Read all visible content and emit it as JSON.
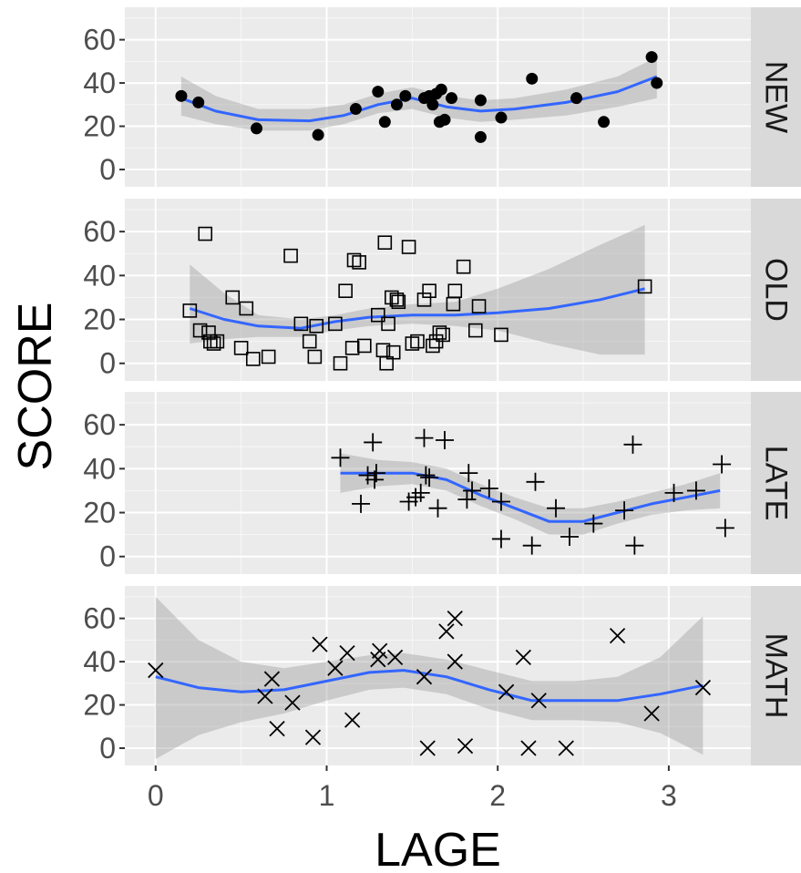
{
  "chart_data": {
    "type": "scatter",
    "xlabel": "LAGE",
    "ylabel": "SCORE",
    "xlim": [
      -0.18,
      3.48
    ],
    "ylim": [
      -8,
      75
    ],
    "x_ticks": [
      0,
      1,
      2,
      3
    ],
    "y_ticks": [
      0,
      20,
      40,
      60
    ],
    "grid": true,
    "smooth": "loess with 95% confidence band",
    "colors": {
      "panel_bg": "#ebebeb",
      "grid_major": "#ffffff",
      "strip_bg": "#d9d9d9",
      "smooth_line": "#3366ff",
      "ribbon": "#999999",
      "points": "#000000"
    },
    "panels": [
      {
        "label": "NEW",
        "marker": "filled-circle",
        "points": [
          [
            0.15,
            34
          ],
          [
            0.25,
            31
          ],
          [
            0.59,
            19
          ],
          [
            0.95,
            16
          ],
          [
            1.17,
            28
          ],
          [
            1.3,
            36
          ],
          [
            1.34,
            22
          ],
          [
            1.41,
            30
          ],
          [
            1.46,
            34
          ],
          [
            1.57,
            33
          ],
          [
            1.6,
            34
          ],
          [
            1.62,
            30
          ],
          [
            1.64,
            35
          ],
          [
            1.66,
            22
          ],
          [
            1.67,
            37
          ],
          [
            1.69,
            23
          ],
          [
            1.73,
            33
          ],
          [
            1.9,
            15
          ],
          [
            1.9,
            32
          ],
          [
            2.02,
            24
          ],
          [
            2.2,
            42
          ],
          [
            2.46,
            33
          ],
          [
            2.62,
            22
          ],
          [
            2.9,
            52
          ],
          [
            2.93,
            40
          ]
        ],
        "smooth": [
          [
            0.15,
            33
          ],
          [
            0.35,
            27
          ],
          [
            0.6,
            23
          ],
          [
            0.9,
            22.5
          ],
          [
            1.1,
            25
          ],
          [
            1.3,
            30
          ],
          [
            1.5,
            33
          ],
          [
            1.7,
            29
          ],
          [
            1.9,
            27
          ],
          [
            2.1,
            28
          ],
          [
            2.4,
            31
          ],
          [
            2.7,
            36
          ],
          [
            2.93,
            43
          ]
        ],
        "band": [
          [
            0.15,
            25,
            43
          ],
          [
            0.35,
            21,
            34
          ],
          [
            0.6,
            18,
            28
          ],
          [
            0.9,
            18,
            28
          ],
          [
            1.1,
            21,
            30
          ],
          [
            1.3,
            26,
            35
          ],
          [
            1.5,
            28,
            38
          ],
          [
            1.7,
            24,
            34
          ],
          [
            1.9,
            22,
            32
          ],
          [
            2.1,
            23,
            33
          ],
          [
            2.4,
            25,
            37
          ],
          [
            2.7,
            29,
            43
          ],
          [
            2.93,
            33,
            52
          ]
        ]
      },
      {
        "label": "OLD",
        "marker": "open-square",
        "points": [
          [
            0.2,
            24
          ],
          [
            0.26,
            15
          ],
          [
            0.29,
            59
          ],
          [
            0.31,
            14
          ],
          [
            0.32,
            10
          ],
          [
            0.34,
            9
          ],
          [
            0.36,
            10
          ],
          [
            0.45,
            30
          ],
          [
            0.5,
            7
          ],
          [
            0.53,
            25
          ],
          [
            0.57,
            2
          ],
          [
            0.66,
            3
          ],
          [
            0.79,
            49
          ],
          [
            0.85,
            18
          ],
          [
            0.9,
            10
          ],
          [
            0.93,
            3
          ],
          [
            0.94,
            17
          ],
          [
            1.05,
            18
          ],
          [
            1.08,
            0
          ],
          [
            1.11,
            33
          ],
          [
            1.15,
            7
          ],
          [
            1.16,
            47
          ],
          [
            1.19,
            46
          ],
          [
            1.22,
            8
          ],
          [
            1.3,
            22
          ],
          [
            1.33,
            6
          ],
          [
            1.34,
            55
          ],
          [
            1.35,
            0
          ],
          [
            1.36,
            18
          ],
          [
            1.38,
            30
          ],
          [
            1.39,
            5
          ],
          [
            1.41,
            29
          ],
          [
            1.42,
            28
          ],
          [
            1.48,
            53
          ],
          [
            1.5,
            9
          ],
          [
            1.53,
            10
          ],
          [
            1.57,
            29
          ],
          [
            1.6,
            33
          ],
          [
            1.62,
            8
          ],
          [
            1.64,
            10
          ],
          [
            1.66,
            14
          ],
          [
            1.68,
            13
          ],
          [
            1.74,
            27
          ],
          [
            1.75,
            33
          ],
          [
            1.8,
            44
          ],
          [
            1.87,
            15
          ],
          [
            1.89,
            26
          ],
          [
            2.02,
            13
          ],
          [
            2.86,
            35
          ]
        ],
        "smooth": [
          [
            0.2,
            25
          ],
          [
            0.4,
            20
          ],
          [
            0.6,
            17
          ],
          [
            0.85,
            16
          ],
          [
            1.05,
            19
          ],
          [
            1.25,
            21
          ],
          [
            1.5,
            22
          ],
          [
            1.75,
            22
          ],
          [
            2.0,
            23
          ],
          [
            2.3,
            25
          ],
          [
            2.6,
            29
          ],
          [
            2.86,
            34
          ]
        ],
        "band": [
          [
            0.2,
            9,
            45
          ],
          [
            0.4,
            11,
            32
          ],
          [
            0.6,
            12,
            22
          ],
          [
            0.85,
            12,
            20
          ],
          [
            1.05,
            15,
            22
          ],
          [
            1.25,
            17,
            25
          ],
          [
            1.5,
            18,
            27
          ],
          [
            1.75,
            17,
            28
          ],
          [
            2.0,
            15,
            34
          ],
          [
            2.3,
            9,
            43
          ],
          [
            2.6,
            4,
            54
          ],
          [
            2.86,
            4,
            63
          ]
        ]
      },
      {
        "label": "LATE",
        "marker": "plus",
        "points": [
          [
            1.08,
            45
          ],
          [
            1.2,
            24
          ],
          [
            1.24,
            37
          ],
          [
            1.27,
            52
          ],
          [
            1.28,
            35
          ],
          [
            1.29,
            38
          ],
          [
            1.48,
            25
          ],
          [
            1.52,
            27
          ],
          [
            1.55,
            29
          ],
          [
            1.57,
            54
          ],
          [
            1.58,
            37
          ],
          [
            1.6,
            36
          ],
          [
            1.65,
            22
          ],
          [
            1.69,
            53
          ],
          [
            1.82,
            26
          ],
          [
            1.83,
            38
          ],
          [
            1.85,
            30
          ],
          [
            1.95,
            31
          ],
          [
            2.02,
            8
          ],
          [
            2.02,
            25
          ],
          [
            2.2,
            5
          ],
          [
            2.22,
            34
          ],
          [
            2.34,
            22
          ],
          [
            2.42,
            9
          ],
          [
            2.56,
            15
          ],
          [
            2.74,
            21
          ],
          [
            2.79,
            51
          ],
          [
            2.8,
            5
          ],
          [
            3.03,
            29
          ],
          [
            3.16,
            30
          ],
          [
            3.31,
            42
          ],
          [
            3.33,
            13
          ]
        ],
        "smooth": [
          [
            1.08,
            38
          ],
          [
            1.3,
            38
          ],
          [
            1.5,
            38
          ],
          [
            1.7,
            35
          ],
          [
            1.9,
            28
          ],
          [
            2.1,
            22
          ],
          [
            2.3,
            16
          ],
          [
            2.5,
            16
          ],
          [
            2.7,
            20
          ],
          [
            2.9,
            24
          ],
          [
            3.1,
            27
          ],
          [
            3.3,
            30
          ]
        ],
        "band": [
          [
            1.08,
            29,
            47
          ],
          [
            1.3,
            32,
            44
          ],
          [
            1.5,
            33,
            43
          ],
          [
            1.7,
            30,
            40
          ],
          [
            1.9,
            23,
            33
          ],
          [
            2.1,
            17,
            27
          ],
          [
            2.3,
            10,
            22
          ],
          [
            2.5,
            10,
            22
          ],
          [
            2.7,
            15,
            25
          ],
          [
            2.9,
            19,
            29
          ],
          [
            3.1,
            21,
            33
          ],
          [
            3.3,
            22,
            38
          ]
        ]
      },
      {
        "label": "MATH",
        "marker": "cross",
        "points": [
          [
            0.0,
            36
          ],
          [
            0.64,
            24
          ],
          [
            0.68,
            32
          ],
          [
            0.71,
            9
          ],
          [
            0.8,
            21
          ],
          [
            0.92,
            5
          ],
          [
            0.96,
            48
          ],
          [
            1.05,
            37
          ],
          [
            1.12,
            44
          ],
          [
            1.15,
            13
          ],
          [
            1.3,
            41
          ],
          [
            1.31,
            45
          ],
          [
            1.4,
            42
          ],
          [
            1.57,
            33
          ],
          [
            1.59,
            0
          ],
          [
            1.7,
            54
          ],
          [
            1.75,
            60
          ],
          [
            1.75,
            40
          ],
          [
            1.81,
            1
          ],
          [
            2.05,
            26
          ],
          [
            2.15,
            42
          ],
          [
            2.18,
            0
          ],
          [
            2.24,
            22
          ],
          [
            2.4,
            0
          ],
          [
            2.7,
            52
          ],
          [
            2.9,
            16
          ],
          [
            3.2,
            28
          ]
        ],
        "smooth": [
          [
            0.0,
            33
          ],
          [
            0.25,
            28
          ],
          [
            0.5,
            26
          ],
          [
            0.75,
            27
          ],
          [
            1.0,
            31
          ],
          [
            1.25,
            35
          ],
          [
            1.45,
            36
          ],
          [
            1.7,
            33
          ],
          [
            1.95,
            27
          ],
          [
            2.2,
            22
          ],
          [
            2.45,
            22
          ],
          [
            2.7,
            22
          ],
          [
            2.95,
            25
          ],
          [
            3.2,
            29
          ]
        ],
        "band": [
          [
            0.0,
            -5,
            70
          ],
          [
            0.25,
            6,
            50
          ],
          [
            0.5,
            12,
            40
          ],
          [
            0.75,
            16,
            37
          ],
          [
            1.0,
            22,
            40
          ],
          [
            1.25,
            27,
            43
          ],
          [
            1.45,
            28,
            44
          ],
          [
            1.7,
            25,
            41
          ],
          [
            1.95,
            18,
            36
          ],
          [
            2.2,
            13,
            31
          ],
          [
            2.45,
            13,
            31
          ],
          [
            2.7,
            12,
            33
          ],
          [
            2.95,
            7,
            42
          ],
          [
            3.2,
            -3,
            61
          ]
        ]
      }
    ]
  }
}
